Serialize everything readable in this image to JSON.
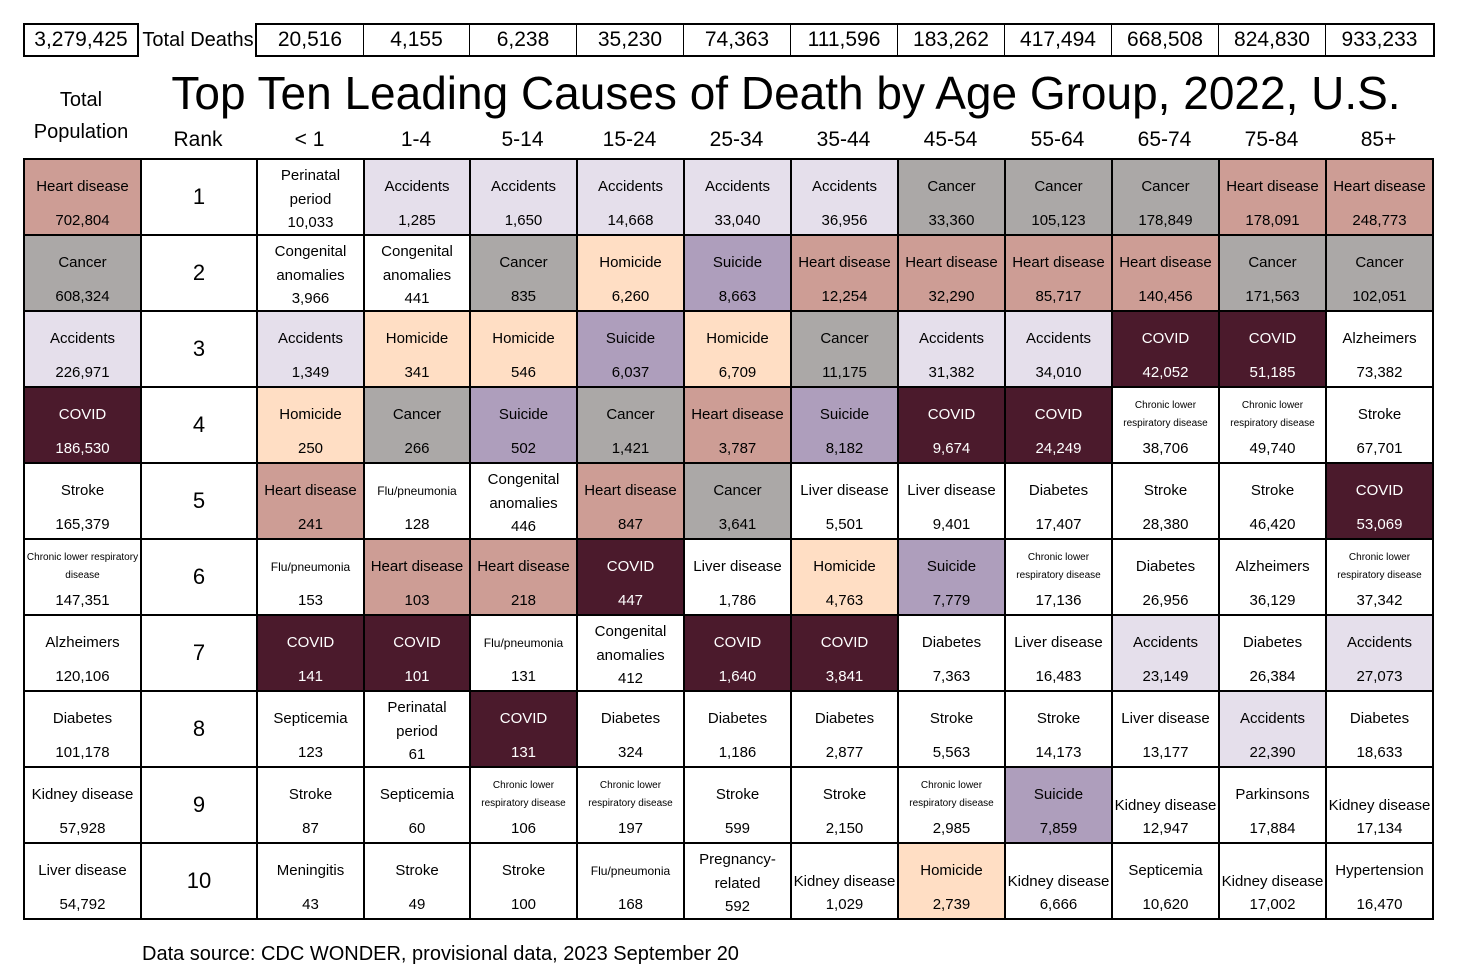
{
  "title": "Top Ten Leading Causes of Death by Age Group, 2022, U.S.",
  "total_population_label": "Total Population",
  "total_population_label_lines": [
    "Total",
    "Population"
  ],
  "total_value": "3,279,425",
  "total_deaths_label": "Total Deaths",
  "rank_label": "Rank",
  "footer": "Data source: CDC WONDER, provisional data, 2023 September 20",
  "colors": {
    "Heart disease": "#CD9D95",
    "Cancer": "#ABA8A7",
    "Accidents": "#E5DFEB",
    "Homicide": "#FFDEC4",
    "Suicide": "#AE9EBC",
    "COVID": "#4B1A2C"
  },
  "chart_data": {
    "type": "table",
    "title": "Top Ten Leading Causes of Death by Age Group, 2022, U.S.",
    "columns": [
      "Total Population",
      "Rank",
      "< 1",
      "1-4",
      "5-14",
      "15-24",
      "25-34",
      "35-44",
      "45-54",
      "55-64",
      "65-74",
      "75-84",
      "85+"
    ],
    "age_groups": [
      "< 1",
      "1-4",
      "5-14",
      "15-24",
      "25-34",
      "35-44",
      "45-54",
      "55-64",
      "65-74",
      "75-84",
      "85+"
    ],
    "total_deaths_all": "3,279,425",
    "total_deaths_by_age": [
      "20,516",
      "4,155",
      "6,238",
      "35,230",
      "74,363",
      "111,596",
      "183,262",
      "417,494",
      "668,508",
      "824,830",
      "933,233"
    ],
    "rows": [
      {
        "rank": "1",
        "total": {
          "cause": "Heart disease",
          "deaths": "702,804"
        },
        "cells": [
          {
            "cause": "Perinatal period",
            "deaths": "10,033"
          },
          {
            "cause": "Accidents",
            "deaths": "1,285"
          },
          {
            "cause": "Accidents",
            "deaths": "1,650"
          },
          {
            "cause": "Accidents",
            "deaths": "14,668"
          },
          {
            "cause": "Accidents",
            "deaths": "33,040"
          },
          {
            "cause": "Accidents",
            "deaths": "36,956"
          },
          {
            "cause": "Cancer",
            "deaths": "33,360"
          },
          {
            "cause": "Cancer",
            "deaths": "105,123"
          },
          {
            "cause": "Cancer",
            "deaths": "178,849"
          },
          {
            "cause": "Heart disease",
            "deaths": "178,091"
          },
          {
            "cause": "Heart disease",
            "deaths": "248,773"
          }
        ]
      },
      {
        "rank": "2",
        "total": {
          "cause": "Cancer",
          "deaths": "608,324"
        },
        "cells": [
          {
            "cause": "Congenital anomalies",
            "deaths": "3,966"
          },
          {
            "cause": "Congenital anomalies",
            "deaths": "441"
          },
          {
            "cause": "Cancer",
            "deaths": "835"
          },
          {
            "cause": "Homicide",
            "deaths": "6,260"
          },
          {
            "cause": "Suicide",
            "deaths": "8,663"
          },
          {
            "cause": "Heart disease",
            "deaths": "12,254"
          },
          {
            "cause": "Heart disease",
            "deaths": "32,290"
          },
          {
            "cause": "Heart disease",
            "deaths": "85,717"
          },
          {
            "cause": "Heart disease",
            "deaths": "140,456"
          },
          {
            "cause": "Cancer",
            "deaths": "171,563"
          },
          {
            "cause": "Cancer",
            "deaths": "102,051"
          }
        ]
      },
      {
        "rank": "3",
        "total": {
          "cause": "Accidents",
          "deaths": "226,971"
        },
        "cells": [
          {
            "cause": "Accidents",
            "deaths": "1,349"
          },
          {
            "cause": "Homicide",
            "deaths": "341"
          },
          {
            "cause": "Homicide",
            "deaths": "546"
          },
          {
            "cause": "Suicide",
            "deaths": "6,037"
          },
          {
            "cause": "Homicide",
            "deaths": "6,709"
          },
          {
            "cause": "Cancer",
            "deaths": "11,175"
          },
          {
            "cause": "Accidents",
            "deaths": "31,382"
          },
          {
            "cause": "Accidents",
            "deaths": "34,010"
          },
          {
            "cause": "COVID",
            "deaths": "42,052"
          },
          {
            "cause": "COVID",
            "deaths": "51,185"
          },
          {
            "cause": "Alzheimers",
            "deaths": "73,382"
          }
        ]
      },
      {
        "rank": "4",
        "total": {
          "cause": "COVID",
          "deaths": "186,530"
        },
        "cells": [
          {
            "cause": "Homicide",
            "deaths": "250"
          },
          {
            "cause": "Cancer",
            "deaths": "266"
          },
          {
            "cause": "Suicide",
            "deaths": "502"
          },
          {
            "cause": "Cancer",
            "deaths": "1,421"
          },
          {
            "cause": "Heart disease",
            "deaths": "3,787"
          },
          {
            "cause": "Suicide",
            "deaths": "8,182"
          },
          {
            "cause": "COVID",
            "deaths": "9,674"
          },
          {
            "cause": "COVID",
            "deaths": "24,249"
          },
          {
            "cause": "Chronic lower respiratory disease",
            "deaths": "38,706"
          },
          {
            "cause": "Chronic lower respiratory disease",
            "deaths": "49,740"
          },
          {
            "cause": "Stroke",
            "deaths": "67,701"
          }
        ]
      },
      {
        "rank": "5",
        "total": {
          "cause": "Stroke",
          "deaths": "165,379"
        },
        "cells": [
          {
            "cause": "Heart disease",
            "deaths": "241"
          },
          {
            "cause": "Flu/pneumonia",
            "deaths": "128"
          },
          {
            "cause": "Congenital anomalies",
            "deaths": "446"
          },
          {
            "cause": "Heart disease",
            "deaths": "847"
          },
          {
            "cause": "Cancer",
            "deaths": "3,641"
          },
          {
            "cause": "Liver disease",
            "deaths": "5,501"
          },
          {
            "cause": "Liver disease",
            "deaths": "9,401"
          },
          {
            "cause": "Diabetes",
            "deaths": "17,407"
          },
          {
            "cause": "Stroke",
            "deaths": "28,380"
          },
          {
            "cause": "Stroke",
            "deaths": "46,420"
          },
          {
            "cause": "COVID",
            "deaths": "53,069"
          }
        ]
      },
      {
        "rank": "6",
        "total": {
          "cause": "Chronic lower respiratory disease",
          "deaths": "147,351"
        },
        "cells": [
          {
            "cause": "Flu/pneumonia",
            "deaths": "153"
          },
          {
            "cause": "Heart disease",
            "deaths": "103"
          },
          {
            "cause": "Heart disease",
            "deaths": "218"
          },
          {
            "cause": "COVID",
            "deaths": "447"
          },
          {
            "cause": "Liver disease",
            "deaths": "1,786"
          },
          {
            "cause": "Homicide",
            "deaths": "4,763"
          },
          {
            "cause": "Suicide",
            "deaths": "7,779"
          },
          {
            "cause": "Chronic lower respiratory disease",
            "deaths": "17,136"
          },
          {
            "cause": "Diabetes",
            "deaths": "26,956"
          },
          {
            "cause": "Alzheimers",
            "deaths": "36,129"
          },
          {
            "cause": "Chronic lower respiratory disease",
            "deaths": "37,342"
          }
        ]
      },
      {
        "rank": "7",
        "total": {
          "cause": "Alzheimers",
          "deaths": "120,106"
        },
        "cells": [
          {
            "cause": "COVID",
            "deaths": "141"
          },
          {
            "cause": "COVID",
            "deaths": "101"
          },
          {
            "cause": "Flu/pneumonia",
            "deaths": "131"
          },
          {
            "cause": "Congenital anomalies",
            "deaths": "412"
          },
          {
            "cause": "COVID",
            "deaths": "1,640"
          },
          {
            "cause": "COVID",
            "deaths": "3,841"
          },
          {
            "cause": "Diabetes",
            "deaths": "7,363"
          },
          {
            "cause": "Liver disease",
            "deaths": "16,483"
          },
          {
            "cause": "Accidents",
            "deaths": "23,149"
          },
          {
            "cause": "Diabetes",
            "deaths": "26,384"
          },
          {
            "cause": "Accidents",
            "deaths": "27,073"
          }
        ]
      },
      {
        "rank": "8",
        "total": {
          "cause": "Diabetes",
          "deaths": "101,178"
        },
        "cells": [
          {
            "cause": "Septicemia",
            "deaths": "123"
          },
          {
            "cause": "Perinatal period",
            "deaths": "61"
          },
          {
            "cause": "COVID",
            "deaths": "131"
          },
          {
            "cause": "Diabetes",
            "deaths": "324"
          },
          {
            "cause": "Diabetes",
            "deaths": "1,186"
          },
          {
            "cause": "Diabetes",
            "deaths": "2,877"
          },
          {
            "cause": "Stroke",
            "deaths": "5,563"
          },
          {
            "cause": "Stroke",
            "deaths": "14,173"
          },
          {
            "cause": "Liver disease",
            "deaths": "13,177"
          },
          {
            "cause": "Accidents",
            "deaths": "22,390"
          },
          {
            "cause": "Diabetes",
            "deaths": "18,633"
          }
        ]
      },
      {
        "rank": "9",
        "total": {
          "cause": "Kidney disease",
          "deaths": "57,928"
        },
        "cells": [
          {
            "cause": "Stroke",
            "deaths": "87"
          },
          {
            "cause": "Septicemia",
            "deaths": "60"
          },
          {
            "cause": "Chronic lower respiratory disease",
            "deaths": "106"
          },
          {
            "cause": "Chronic lower respiratory disease",
            "deaths": "197"
          },
          {
            "cause": "Stroke",
            "deaths": "599"
          },
          {
            "cause": "Stroke",
            "deaths": "2,150"
          },
          {
            "cause": "Chronic lower respiratory disease",
            "deaths": "2,985"
          },
          {
            "cause": "Suicide",
            "deaths": "7,859"
          },
          {
            "cause": "Kidney disease",
            "deaths": "12,947"
          },
          {
            "cause": "Parkinsons",
            "deaths": "17,884"
          },
          {
            "cause": "Kidney disease",
            "deaths": "17,134"
          }
        ]
      },
      {
        "rank": "10",
        "total": {
          "cause": "Liver disease",
          "deaths": "54,792"
        },
        "cells": [
          {
            "cause": "Meningitis",
            "deaths": "43"
          },
          {
            "cause": "Stroke",
            "deaths": "49"
          },
          {
            "cause": "Stroke",
            "deaths": "100"
          },
          {
            "cause": "Flu/pneumonia",
            "deaths": "168"
          },
          {
            "cause": "Pregnancy-related",
            "deaths": "592"
          },
          {
            "cause": "Kidney disease",
            "deaths": "1,029"
          },
          {
            "cause": "Homicide",
            "deaths": "2,739"
          },
          {
            "cause": "Kidney disease",
            "deaths": "6,666"
          },
          {
            "cause": "Septicemia",
            "deaths": "10,620"
          },
          {
            "cause": "Kidney disease",
            "deaths": "17,002"
          },
          {
            "cause": "Hypertension",
            "deaths": "16,470"
          }
        ]
      }
    ]
  }
}
